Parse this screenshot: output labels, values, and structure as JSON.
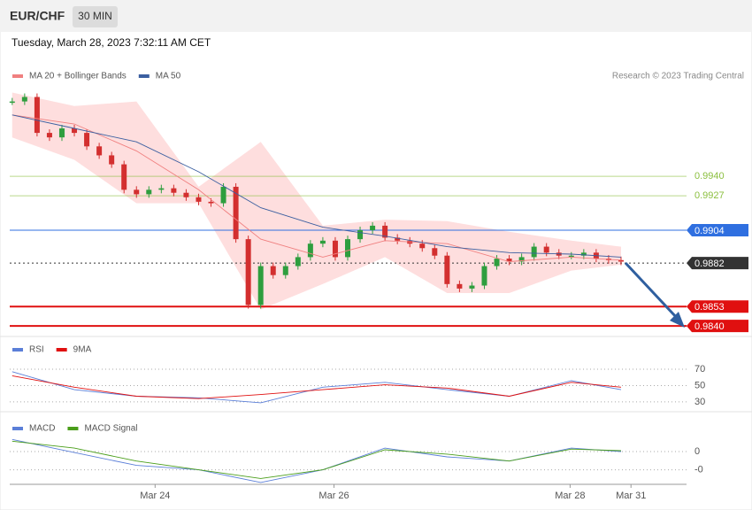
{
  "header": {
    "symbol": "EUR/CHF",
    "interval": "30 MIN",
    "timestamp": "Tuesday, March 28, 2023 7:32:11 AM CET"
  },
  "chart_data": [
    {
      "type": "candlestick",
      "credit": "Research © 2023 Trading Central",
      "closes": [
        0.999,
        0.9993,
        0.9969,
        0.9966,
        0.9972,
        0.9969,
        0.996,
        0.9954,
        0.9948,
        0.9931,
        0.9928,
        0.9931,
        0.9932,
        0.9929,
        0.9926,
        0.9923,
        0.9922,
        0.9933,
        0.9898,
        0.9854,
        0.988,
        0.9874,
        0.988,
        0.9886,
        0.9895,
        0.9897,
        0.9886,
        0.9898,
        0.9904,
        0.9907,
        0.9899,
        0.9897,
        0.9895,
        0.9892,
        0.9887,
        0.9868,
        0.9865,
        0.9867,
        0.988,
        0.9885,
        0.9883,
        0.9886,
        0.9893,
        0.9889,
        0.9887,
        0.9887,
        0.9889,
        0.9885,
        0.9884,
        0.9883
      ],
      "up_color": "#2e9e3e",
      "down_color": "#d32f2f",
      "x": [
        0,
        5,
        10,
        15,
        20,
        25,
        30,
        35,
        40,
        45,
        49
      ],
      "series": [
        {
          "name": "MA 20 + Bollinger Bands",
          "color": "#f08080",
          "band_color": "#fdd3d3",
          "values": [
            0.9981,
            0.9975,
            0.9957,
            0.9931,
            0.9898,
            0.9886,
            0.9897,
            0.9895,
            0.9883,
            0.9886,
            0.9884
          ],
          "upper": [
            0.9996,
            0.9987,
            0.999,
            0.9933,
            0.9963,
            0.9907,
            0.9911,
            0.991,
            0.9903,
            0.9897,
            0.9893
          ],
          "lower": [
            0.9966,
            0.9951,
            0.9922,
            0.9922,
            0.9851,
            0.9868,
            0.9886,
            0.9862,
            0.9862,
            0.9877,
            0.9881
          ]
        },
        {
          "name": "MA 50",
          "color": "#3b5fa0",
          "values": [
            0.9981,
            0.9972,
            0.9963,
            0.9943,
            0.9919,
            0.9906,
            0.99,
            0.9893,
            0.9889,
            0.9888,
            0.9886
          ]
        }
      ],
      "levels": [
        {
          "value": 0.994,
          "label": "0.9940",
          "color": "#8bbf3f",
          "tag": false
        },
        {
          "value": 0.9927,
          "color": "#8bbf3f",
          "tag": false
        },
        {
          "value": 0.9904,
          "color": "#2f6fe0",
          "tag": true
        },
        {
          "value": 0.9882,
          "color": "#333333",
          "tag": true,
          "dashed": true
        },
        {
          "value": 0.9853,
          "color": "#e01010",
          "tag": true
        },
        {
          "value": 0.984,
          "label": "0.9840",
          "color": "#e01010",
          "tag": true
        }
      ],
      "xlim": [
        -0.2,
        54.2
      ],
      "xticks": [
        {
          "value": 11.5,
          "label": "Mar 24"
        },
        {
          "value": 25.9,
          "label": "Mar 26"
        },
        {
          "value": 44.9,
          "label": "Mar 28"
        },
        {
          "value": 49.8,
          "label": "Mar 31"
        }
      ],
      "ylim": [
        0.9833,
        1.0001
      ]
    },
    {
      "type": "line",
      "x": [
        0,
        5,
        10,
        15,
        20,
        25,
        30,
        35,
        40,
        45,
        49
      ],
      "series": [
        {
          "name": "RSI",
          "color": "#5b7fd8",
          "values": [
            67,
            45,
            37,
            35,
            29,
            48,
            54,
            45,
            37,
            56,
            45
          ]
        },
        {
          "name": "9MA",
          "color": "#e01010",
          "values": [
            62,
            48,
            37,
            34,
            39,
            45,
            51,
            47,
            37,
            54,
            48
          ]
        }
      ],
      "xlim": [
        -0.2,
        54.2
      ],
      "ylim": [
        18,
        108
      ],
      "yticks": [
        30,
        50,
        70
      ]
    },
    {
      "type": "line",
      "x": [
        0,
        5,
        10,
        15,
        20,
        25,
        30,
        35,
        40,
        45,
        49
      ],
      "series": [
        {
          "name": "MACD",
          "color": "#5b7fd8",
          "values": [
            0.00067,
            -5e-05,
            -0.00076,
            -0.001,
            -0.0017,
            -0.001,
            0.00019,
            -0.00029,
            -0.00052,
            0.00019,
            0
          ]
        },
        {
          "name": "MACD Signal",
          "color": "#4a9e1a",
          "values": [
            0.00057,
            0.00019,
            -0.00052,
            -0.001,
            -0.00148,
            -0.001,
            0.0001,
            -0.00014,
            -0.00052,
            0.00014,
            5e-05
          ]
        }
      ],
      "xlim": [
        -0.2,
        54.2
      ],
      "ylim": [
        -0.0018,
        0.0019
      ],
      "yticks": [
        0,
        {
          "value": -0.001,
          "label": "-0"
        }
      ]
    }
  ]
}
